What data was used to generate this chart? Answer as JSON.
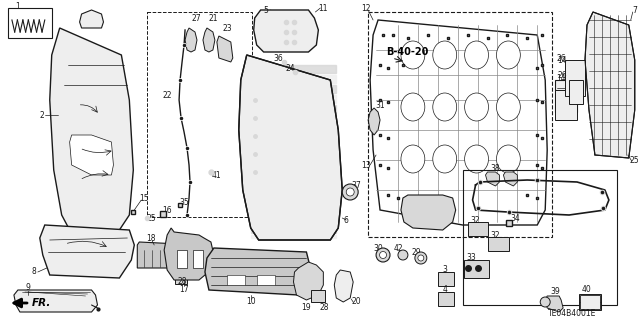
{
  "background_color": "#ffffff",
  "diagram_code": "TE04B4001E",
  "ref_code": "B-40-20",
  "fr_label": "FR.",
  "figsize": [
    6.4,
    3.2
  ],
  "dpi": 100,
  "lc": "#1a1a1a",
  "tc": "#1a1a1a",
  "gray_fill": "#d8d8d8",
  "light_fill": "#eeeeee",
  "mid_fill": "#c8c8c8"
}
